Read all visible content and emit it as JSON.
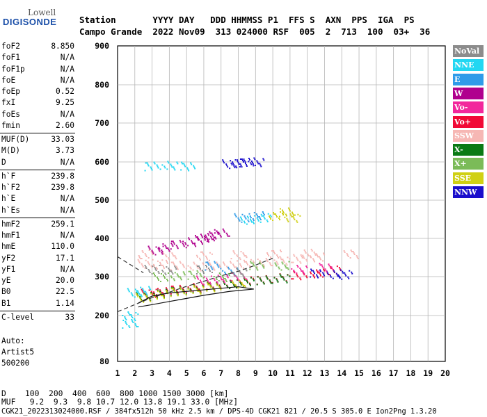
{
  "logo": {
    "line1": "Lowell",
    "line2": "DIGISONDE"
  },
  "header": {
    "line1": "Station       YYYY DAY   DDD HHMMSS P1  FFS S  AXN  PPS  IGA  PS",
    "line2": "Campo Grande  2022 Nov09  313 024000 RSF  005  2  713  100  03+  36"
  },
  "params": [
    {
      "k": "foF2",
      "v": "8.850"
    },
    {
      "k": "foF1",
      "v": "N/A"
    },
    {
      "k": "foF1p",
      "v": "N/A"
    },
    {
      "k": "foE",
      "v": "N/A"
    },
    {
      "k": "foEp",
      "v": "0.52"
    },
    {
      "k": "fxI",
      "v": "9.25"
    },
    {
      "k": "foEs",
      "v": "N/A"
    },
    {
      "k": "fmin",
      "v": "2.60"
    },
    {
      "k": "MUF(D)",
      "v": "33.03"
    },
    {
      "k": "M(D)",
      "v": "3.73"
    },
    {
      "k": "D",
      "v": "N/A"
    },
    {
      "k": "h`F",
      "v": "239.8"
    },
    {
      "k": "h`F2",
      "v": "239.8"
    },
    {
      "k": "h`E",
      "v": "N/A"
    },
    {
      "k": "h`Es",
      "v": "N/A"
    },
    {
      "k": "hmF2",
      "v": "259.1"
    },
    {
      "k": "hmF1",
      "v": "N/A"
    },
    {
      "k": "hmE",
      "v": "110.0"
    },
    {
      "k": "yF2",
      "v": "17.1"
    },
    {
      "k": "yF1",
      "v": "N/A"
    },
    {
      "k": "yE",
      "v": "20.0"
    },
    {
      "k": "B0",
      "v": "22.5"
    },
    {
      "k": "B1",
      "v": "1.14"
    },
    {
      "k": "C-level",
      "v": "33"
    }
  ],
  "auto": {
    "line1": "Auto:",
    "line2": "Artist5",
    "line3": "500200"
  },
  "legend": [
    {
      "label": "NoVal",
      "color": "#8c8c8c"
    },
    {
      "label": "NNE",
      "color": "#22d7f2"
    },
    {
      "label": "E",
      "color": "#2f9be9"
    },
    {
      "label": "W",
      "color": "#b0008e"
    },
    {
      "label": "Vo-",
      "color": "#f2289c"
    },
    {
      "label": "Vo+",
      "color": "#f10a36"
    },
    {
      "label": "SSW",
      "color": "#f6b7b4"
    },
    {
      "label": "X-",
      "color": "#0a7a14"
    },
    {
      "label": "X+",
      "color": "#7bbb58"
    },
    {
      "label": "SSE",
      "color": "#d0d014"
    },
    {
      "label": "NNW",
      "color": "#1a0ecc"
    }
  ],
  "bottom": {
    "line1": "D    100  200  400  600  800 1000 1500 3000 [km]",
    "line2": "MUF   9.2  9.3  9.8 10.7 12.0 13.8 19.1 33.0 [MHz]",
    "line3": "CGK21_2022313024000.RSF / 384fx512h 50 kHz 2.5 km / DPS-4D CGK21 821 / 20.5 S 305.0 E Ion2Png 1.3.20"
  },
  "chart_data": {
    "type": "scatter",
    "title": "",
    "xlabel": "",
    "ylabel": "",
    "xlim": [
      1,
      20
    ],
    "ylim": [
      80,
      900
    ],
    "x_ticks": [
      1,
      2,
      3,
      4,
      5,
      6,
      7,
      8,
      9,
      10,
      11,
      12,
      13,
      14,
      15,
      16,
      17,
      18,
      19,
      20
    ],
    "y_ticks": [
      80,
      200,
      300,
      400,
      500,
      600,
      700,
      800,
      900
    ],
    "grid": true,
    "series": [
      {
        "name": "SSW",
        "color": "#f6b7b4",
        "points": [
          [
            2.6,
            335
          ],
          [
            3.5,
            333
          ],
          [
            4.5,
            330
          ],
          [
            5.5,
            328
          ],
          [
            6.5,
            330
          ],
          [
            7.5,
            332
          ],
          [
            8.5,
            335
          ],
          [
            9.5,
            338
          ],
          [
            10.5,
            343
          ],
          [
            11.5,
            348
          ],
          [
            12.5,
            352
          ],
          [
            2.6,
            360
          ],
          [
            4,
            356
          ],
          [
            6,
            355
          ],
          [
            8,
            358
          ],
          [
            10,
            360
          ],
          [
            12,
            362
          ],
          [
            14.5,
            360
          ]
        ]
      },
      {
        "name": "W",
        "color": "#b0008e",
        "points": [
          [
            3.2,
            370
          ],
          [
            3.8,
            378
          ],
          [
            4.5,
            385
          ],
          [
            5.2,
            392
          ],
          [
            5.8,
            398
          ],
          [
            6.2,
            405
          ],
          [
            6.5,
            410
          ],
          [
            7.0,
            415
          ]
        ]
      },
      {
        "name": "Vo+",
        "color": "#f10a36",
        "points": [
          [
            2.8,
            258
          ],
          [
            3.5,
            262
          ],
          [
            4.5,
            268
          ],
          [
            5.5,
            273
          ],
          [
            6.5,
            278
          ],
          [
            7.5,
            283
          ],
          [
            8.5,
            290
          ],
          [
            9.5,
            293
          ],
          [
            10.5,
            298
          ],
          [
            11.5,
            305
          ],
          [
            12.5,
            310
          ],
          [
            13.5,
            318
          ]
        ]
      },
      {
        "name": "NNW",
        "color": "#1a0ecc",
        "points": [
          [
            7.5,
            596
          ],
          [
            8.0,
            598
          ],
          [
            8.5,
            600
          ],
          [
            9.0,
            601
          ],
          [
            12.5,
            310
          ],
          [
            13.5,
            308
          ],
          [
            14.2,
            306
          ]
        ]
      },
      {
        "name": "X-",
        "color": "#0a7a14",
        "points": [
          [
            2.5,
            250
          ],
          [
            3.5,
            258
          ],
          [
            4.5,
            264
          ],
          [
            5.5,
            270
          ],
          [
            6.5,
            276
          ],
          [
            7.5,
            282
          ],
          [
            8.5,
            288
          ],
          [
            9.5,
            292
          ],
          [
            10.5,
            297
          ]
        ]
      },
      {
        "name": "SSE",
        "color": "#d0d014",
        "points": [
          [
            2.5,
            247
          ],
          [
            3.5,
            255
          ],
          [
            4.5,
            262
          ],
          [
            5.5,
            268
          ],
          [
            6.5,
            274
          ],
          [
            8,
            284
          ],
          [
            10.2,
            460
          ],
          [
            10.8,
            470
          ],
          [
            11.1,
            455
          ]
        ]
      },
      {
        "name": "NNE",
        "color": "#22d7f2",
        "points": [
          [
            2.0,
            260
          ],
          [
            2.5,
            265
          ],
          [
            3.0,
            590
          ],
          [
            4.0,
            592
          ],
          [
            5.0,
            590
          ],
          [
            8.5,
            450
          ],
          [
            9.5,
            455
          ],
          [
            1.7,
            180
          ],
          [
            1.7,
            200
          ]
        ]
      },
      {
        "name": "E",
        "color": "#2f9be9",
        "points": [
          [
            8.2,
            455
          ],
          [
            9.1,
            460
          ],
          [
            6.5,
            330
          ],
          [
            7.5,
            315
          ]
        ]
      },
      {
        "name": "X+",
        "color": "#7bbb58",
        "points": [
          [
            3.5,
            300
          ],
          [
            4.5,
            303
          ],
          [
            5.5,
            306
          ],
          [
            7.0,
            300
          ],
          [
            9.0,
            330
          ],
          [
            10.5,
            330
          ]
        ]
      },
      {
        "name": "Vo-",
        "color": "#f2289c",
        "points": [
          [
            6.0,
            292
          ],
          [
            7.0,
            296
          ],
          [
            8.0,
            302
          ],
          [
            11.5,
            320
          ],
          [
            13.0,
            325
          ]
        ]
      },
      {
        "name": "NoVal",
        "color": "#8c8c8c",
        "points": [
          [
            3.0,
            320
          ],
          [
            4.0,
            318
          ],
          [
            6.0,
            320
          ],
          [
            8.0,
            312
          ]
        ]
      }
    ],
    "lines": [
      {
        "style": "dashed",
        "points": [
          [
            1,
            210
          ],
          [
            2,
            228
          ],
          [
            3,
            246
          ],
          [
            4,
            260
          ],
          [
            5,
            275
          ],
          [
            6,
            288
          ],
          [
            7,
            302
          ],
          [
            8,
            314
          ],
          [
            9,
            330
          ],
          [
            10,
            348
          ]
        ]
      },
      {
        "style": "dashed",
        "points": [
          [
            1,
            352
          ],
          [
            2.5,
            310
          ]
        ]
      },
      {
        "style": "solid",
        "points": [
          [
            2.2,
            232
          ],
          [
            3.0,
            250
          ],
          [
            4.0,
            258
          ],
          [
            5.0,
            262
          ],
          [
            6.0,
            266
          ],
          [
            7.0,
            270
          ],
          [
            8.0,
            274
          ],
          [
            8.9,
            268
          ],
          [
            7.5,
            262
          ],
          [
            6.0,
            252
          ],
          [
            5.0,
            244
          ],
          [
            4.0,
            236
          ],
          [
            3.0,
            228
          ],
          [
            2.2,
            222
          ]
        ]
      }
    ]
  }
}
